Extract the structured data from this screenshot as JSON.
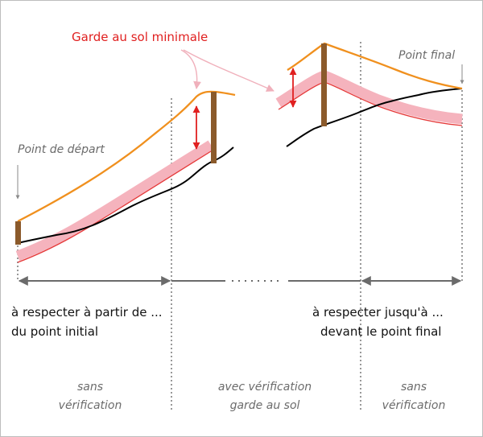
{
  "annotations": {
    "min_ground_clearance": "Garde au sol minimale",
    "start_point": "Point de départ",
    "end_point": "Point final"
  },
  "ranges": {
    "left_line1": "à respecter à partir de ...",
    "left_line2": "du point initial",
    "right_line1": "à respecter jusqu'à ...",
    "right_line2": "devant le point final"
  },
  "sections": [
    {
      "line1": "sans",
      "line2": "vérification"
    },
    {
      "line1": "avec vérification",
      "line2": "garde au sol"
    },
    {
      "line1": "sans",
      "line2": "vérification"
    }
  ],
  "colors": {
    "cable": "#f0901e",
    "terrain": "#000000",
    "clearance_band": "#f5b3bd",
    "clearance_line": "#e53939",
    "pole": "#8b5a2b",
    "arrow": "#e02020",
    "dimension": "#6b6b6b"
  }
}
